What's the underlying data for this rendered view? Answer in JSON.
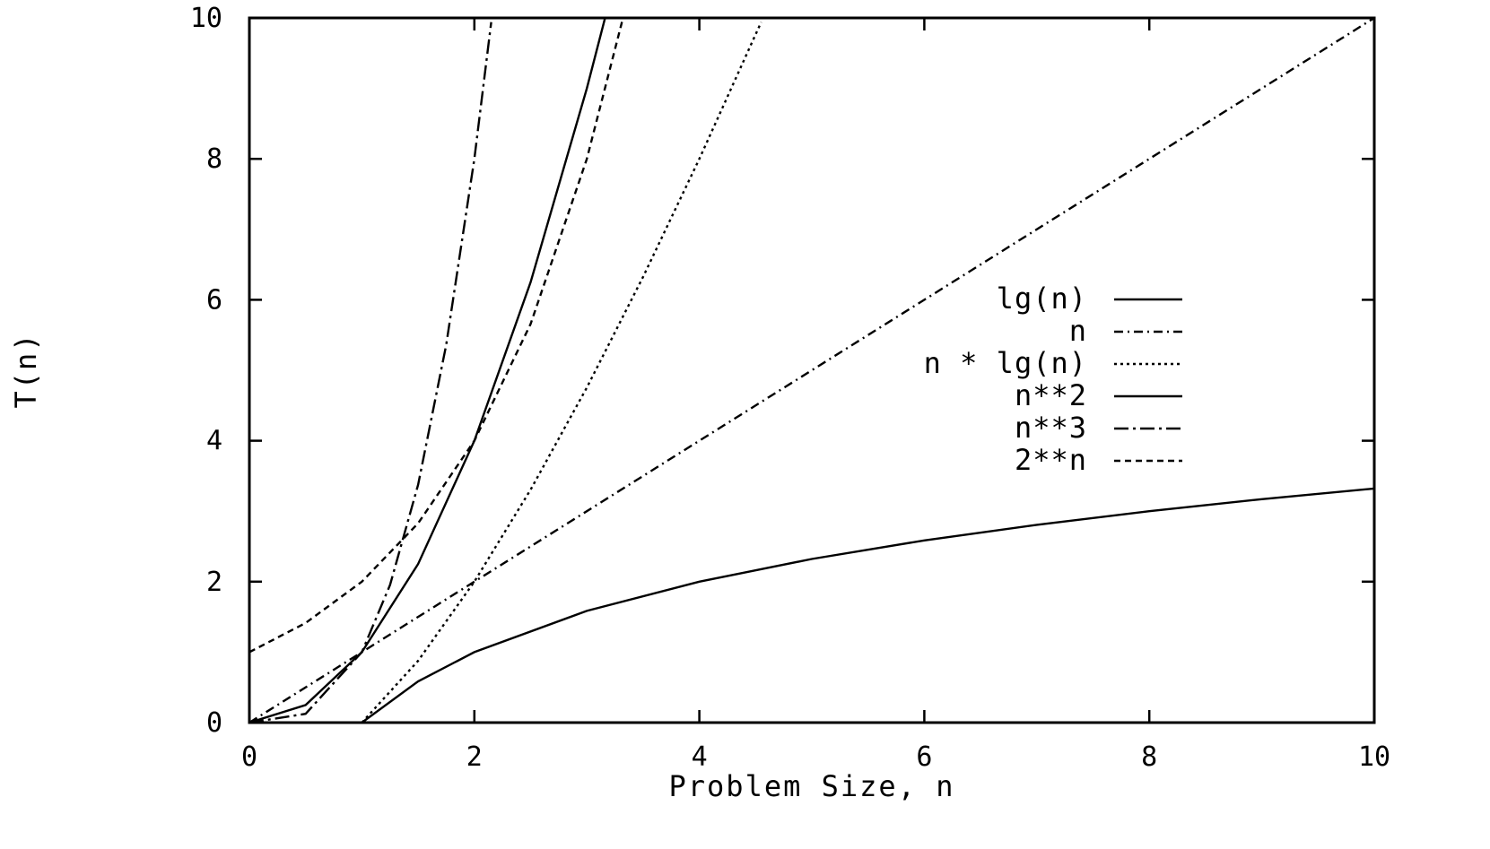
{
  "chart_data": {
    "type": "line",
    "title": "",
    "xlabel": "Problem Size, n",
    "ylabel": "T(n)",
    "xlim": [
      0,
      10
    ],
    "ylim": [
      0,
      10
    ],
    "grid": false,
    "legend_position": "right-center",
    "x_ticks": [
      0,
      2,
      4,
      6,
      8,
      10
    ],
    "y_ticks": [
      0,
      2,
      4,
      6,
      8,
      10
    ],
    "x_tick_labels": [
      "0",
      "2",
      "4",
      "6",
      "8",
      "10"
    ],
    "y_tick_labels": [
      "0",
      "2",
      "4",
      "6",
      "8",
      "10"
    ],
    "series": [
      {
        "name": "lg(n)",
        "dash": "solid",
        "x": [
          1,
          1.5,
          2,
          3,
          4,
          5,
          6,
          7,
          8,
          9,
          10
        ],
        "y": [
          0,
          0.585,
          1,
          1.585,
          2,
          2.322,
          2.585,
          2.807,
          3,
          3.17,
          3.322
        ]
      },
      {
        "name": "n",
        "dash": "dash-dot",
        "x": [
          0,
          2,
          4,
          6,
          8,
          10
        ],
        "y": [
          0,
          2,
          4,
          6,
          8,
          10
        ]
      },
      {
        "name": "n * lg(n)",
        "dash": "dotted",
        "x": [
          1,
          1.5,
          2,
          2.5,
          3,
          3.5,
          4,
          4.5,
          4.55
        ],
        "y": [
          0,
          0.877,
          2,
          3.305,
          4.755,
          6.326,
          8,
          9.765,
          9.94
        ]
      },
      {
        "name": "n**2",
        "dash": "solid",
        "x": [
          0,
          0.5,
          1,
          1.5,
          2,
          2.5,
          3,
          3.16
        ],
        "y": [
          0,
          0.25,
          1,
          2.25,
          4,
          6.25,
          9,
          9.99
        ]
      },
      {
        "name": "n**3",
        "dash": "long-dash-dot",
        "x": [
          0,
          0.5,
          1,
          1.25,
          1.5,
          1.75,
          2,
          2.15
        ],
        "y": [
          0,
          0.125,
          1,
          1.953,
          3.375,
          5.359,
          8,
          9.94
        ]
      },
      {
        "name": "2**n",
        "dash": "dashed",
        "x": [
          0,
          0.5,
          1,
          1.5,
          2,
          2.5,
          3,
          3.32
        ],
        "y": [
          1,
          1.414,
          2,
          2.828,
          4,
          5.657,
          8,
          9.99
        ]
      }
    ]
  }
}
